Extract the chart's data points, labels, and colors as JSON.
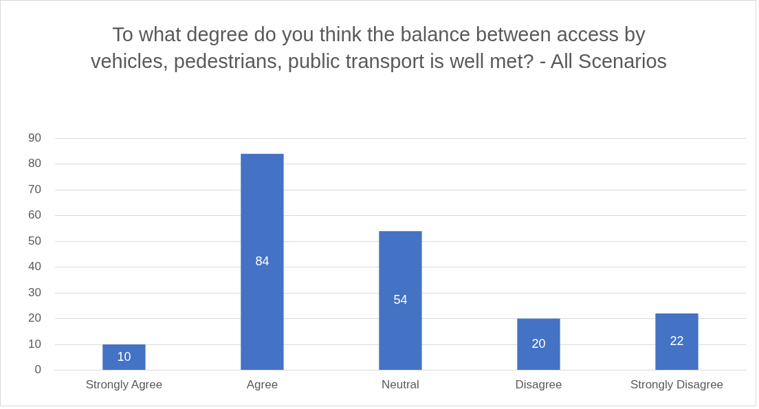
{
  "chart_data": {
    "type": "bar",
    "title": "To what degree do you think the balance between access by vehicles, pedestrians, public transport is well met? - All Scenarios",
    "categories": [
      "Strongly Agree",
      "Agree",
      "Neutral",
      "Disagree",
      "Strongly Disagree"
    ],
    "values": [
      10,
      84,
      54,
      20,
      22
    ],
    "color": "#4472c4",
    "ylim": [
      0,
      90
    ],
    "yticks": [
      0,
      10,
      20,
      30,
      40,
      50,
      60,
      70,
      80,
      90
    ],
    "grid": "y",
    "data_labels": true,
    "legend": false
  }
}
